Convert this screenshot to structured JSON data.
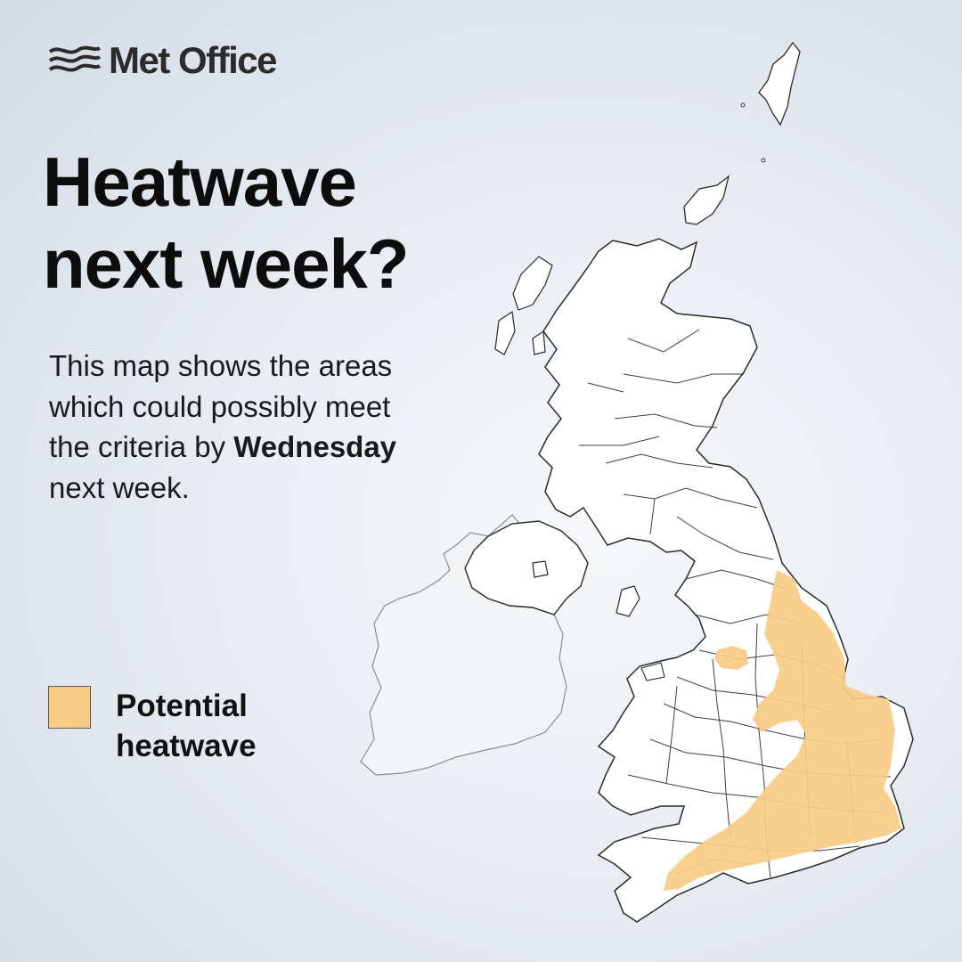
{
  "brand": {
    "name": "Met Office",
    "icon": "met-office-waves-logo"
  },
  "headline": {
    "line1": "Heatwave",
    "line2": "next week?"
  },
  "description": {
    "text_before": "This map shows the areas which could possibly meet the criteria by ",
    "emphasis": "Wednesday",
    "text_after": " next week."
  },
  "legend": {
    "items": [
      {
        "label_line1": "Potential",
        "label_line2": "heatwave",
        "color": "#f8cb83"
      }
    ]
  },
  "colors": {
    "heatwave_fill": "#f8cb83",
    "land": "#ffffff",
    "ireland_land": "#f2f4f6",
    "boundary": "#2a2a2a"
  }
}
